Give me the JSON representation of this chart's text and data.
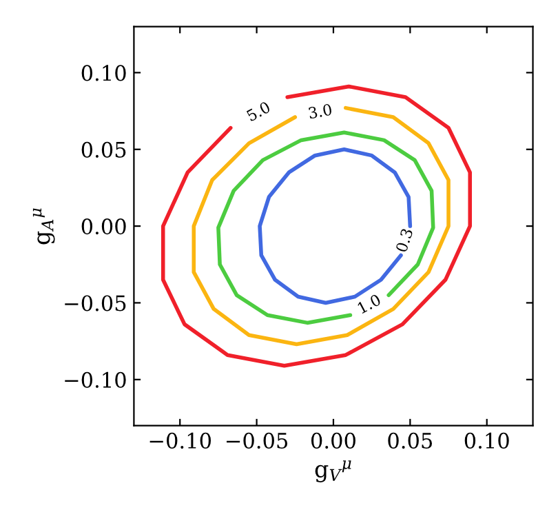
{
  "chart_data": {
    "type": "line",
    "xlabel": "g$_{V}$$^{μ}$",
    "ylabel": "g$_{A}$$^{μ}$",
    "xlim": [
      -0.13,
      0.13
    ],
    "ylim": [
      -0.13,
      0.13
    ],
    "xticks": [
      {
        "value": -0.1,
        "label": "−0.10"
      },
      {
        "value": -0.05,
        "label": "−0.05"
      },
      {
        "value": 0.0,
        "label": "0.00"
      },
      {
        "value": 0.05,
        "label": "0.05"
      },
      {
        "value": 0.1,
        "label": "0.10"
      }
    ],
    "yticks": [
      {
        "value": -0.1,
        "label": "−0.10"
      },
      {
        "value": -0.05,
        "label": "−0.05"
      },
      {
        "value": 0.0,
        "label": "0.00"
      },
      {
        "value": 0.05,
        "label": "0.05"
      },
      {
        "value": 0.1,
        "label": "0.10"
      }
    ],
    "grid": false,
    "legend": false,
    "marker": "none",
    "line_style": "solid",
    "series": [
      {
        "name": "0.3",
        "color": "#4169e1",
        "x": [
          0.05,
          0.049,
          0.04,
          0.025,
          0.007,
          -0.012,
          -0.029,
          -0.042,
          -0.048,
          -0.047,
          -0.038,
          -0.023,
          -0.005,
          0.014,
          0.031,
          0.044
        ],
        "values": [
          0.0,
          0.019,
          0.035,
          0.046,
          0.05,
          0.046,
          0.035,
          0.019,
          0.0,
          -0.019,
          -0.035,
          -0.046,
          -0.05,
          -0.046,
          -0.035,
          -0.019
        ]
      },
      {
        "name": "1.0",
        "color": "#4ccc40",
        "x": [
          0.036,
          0.055,
          0.065,
          0.064,
          0.053,
          0.033,
          0.007,
          -0.021,
          -0.046,
          -0.065,
          -0.075,
          -0.074,
          -0.063,
          -0.043,
          -0.017,
          0.011
        ],
        "values": [
          -0.045,
          -0.025,
          -0.001,
          0.023,
          0.043,
          0.056,
          0.061,
          0.056,
          0.043,
          0.023,
          -0.001,
          -0.025,
          -0.045,
          -0.058,
          -0.063,
          -0.058
        ]
      },
      {
        "name": "3.0",
        "color": "#fbb511",
        "x": [
          -0.025,
          -0.055,
          -0.079,
          -0.091,
          -0.091,
          -0.078,
          -0.055,
          -0.024,
          0.009,
          0.039,
          0.062,
          0.075,
          0.075,
          0.062,
          0.039,
          0.008
        ],
        "values": [
          0.071,
          0.054,
          0.03,
          0.0,
          -0.03,
          -0.054,
          -0.071,
          -0.077,
          -0.071,
          -0.054,
          -0.03,
          0.0,
          0.03,
          0.054,
          0.071,
          0.077
        ]
      },
      {
        "name": "5.0",
        "color": "#f0202a",
        "x": [
          -0.067,
          -0.095,
          -0.111,
          -0.111,
          -0.097,
          -0.069,
          -0.032,
          0.008,
          0.045,
          0.073,
          0.089,
          0.089,
          0.075,
          0.047,
          0.01,
          -0.03
        ],
        "values": [
          0.064,
          0.035,
          0.0,
          -0.035,
          -0.064,
          -0.084,
          -0.091,
          -0.084,
          -0.064,
          -0.035,
          0.0,
          0.035,
          0.064,
          0.084,
          0.091,
          0.084
        ]
      }
    ]
  }
}
